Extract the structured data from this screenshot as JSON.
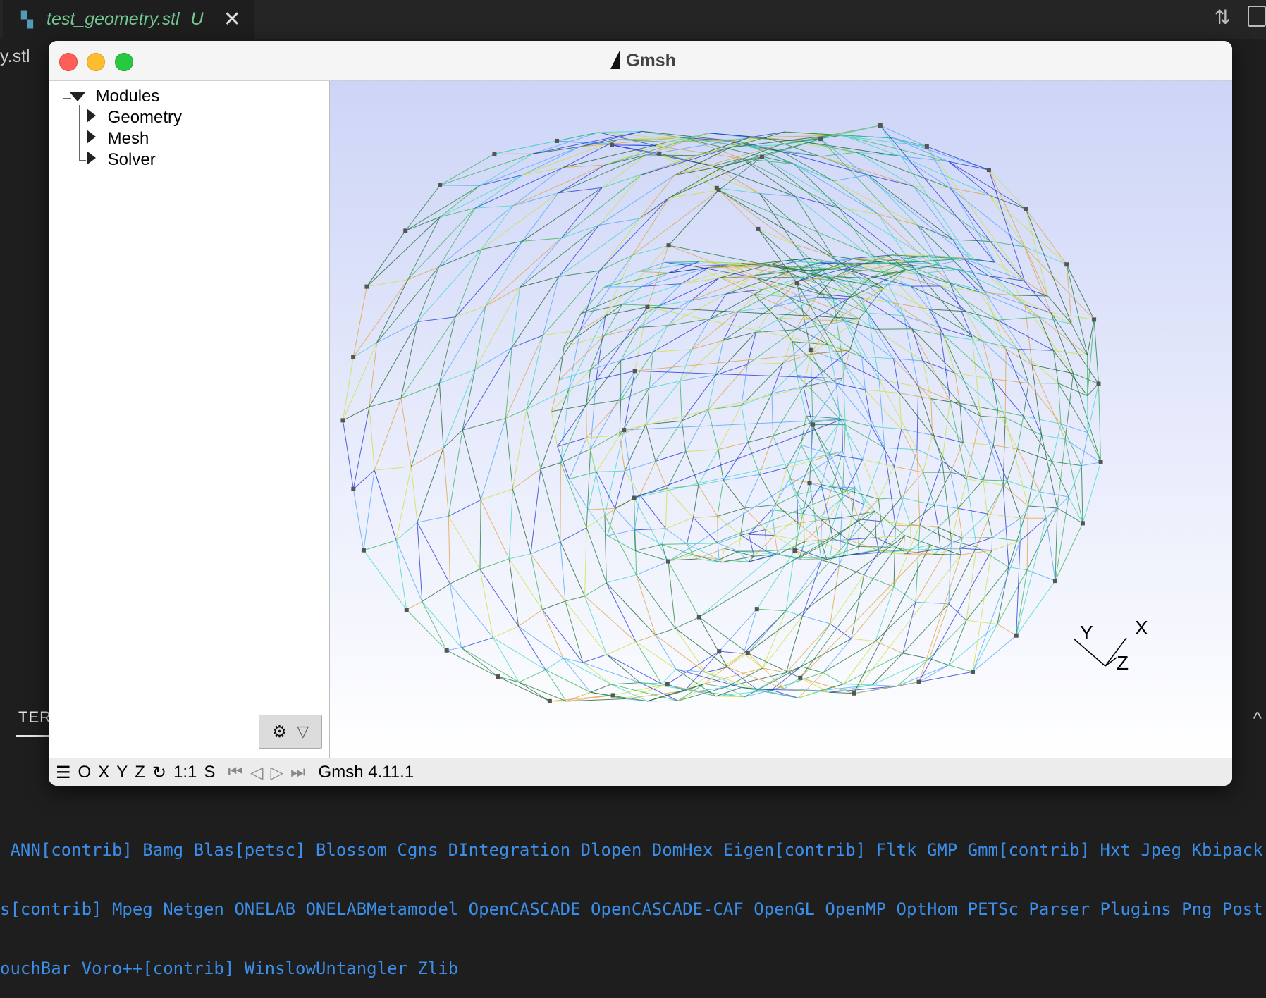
{
  "editor": {
    "tab_name": "test_geometry.stl",
    "tab_status": "U",
    "breadcrumb": "y.stl",
    "panel_tab": "TER"
  },
  "gmsh": {
    "title": "Gmsh",
    "tree": {
      "root": "Modules",
      "items": [
        "Geometry",
        "Mesh",
        "Solver"
      ]
    },
    "axes": {
      "x": "X",
      "y": "Y",
      "z": "Z"
    },
    "status": {
      "buttons": [
        "O",
        "X",
        "Y",
        "Z",
        "1:1",
        "S"
      ],
      "version": "Gmsh 4.11.1"
    }
  },
  "terminal": {
    "lines": [
      " ANN[contrib] Bamg Blas[petsc] Blossom Cgns DIntegration Dlopen DomHex Eigen[contrib] Fltk GMP Gmm[contrib] Hxt Jpeg Kbipack Lapa",
      "s[contrib] Mpeg Netgen ONELAB ONELABMetamodel OpenCASCADE OpenCASCADE-CAF OpenGL OpenMP OptHom PETSc Parser Plugins Png Post Quad",
      "ouchBar Voro++[contrib] WinslowUntangler Zlib"
    ]
  }
}
